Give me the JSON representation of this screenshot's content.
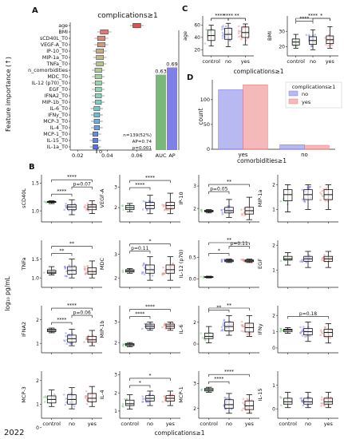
{
  "colors": {
    "control": "#6fbf73",
    "no": "#7f7fe8",
    "yes": "#ef7f7f",
    "auc": "#7ab87a",
    "ap": "#7f7fe8",
    "age_box": "#e05050"
  },
  "footer": {
    "year": "2022"
  },
  "panel_labels": {
    "a": "A",
    "b": "B",
    "c": "C",
    "d": "D"
  },
  "shared": {
    "ylabel_b": "log₁₀ pg/mL",
    "xlabel_b": "complications≥1",
    "groups": [
      "control",
      "no",
      "yes"
    ]
  },
  "chart_data": [
    {
      "id": "A",
      "type": "bar",
      "title": "complications≥1",
      "ylabel": "Feature importance (↑)",
      "features": [
        "age",
        "BMI",
        "sCD40L_T0",
        "VEGF-A_T0",
        "IP-10_T0",
        "MIP-1a_T0",
        "TNFa_T0",
        "n_comorbidities",
        "MDC_T0",
        "IL-12 (p70)_T0",
        "EGF_T0",
        "IFNA2_T0",
        "MIP-1b_T0",
        "IL-6_T0",
        "IFNy_T0",
        "MCP-3_T0",
        "IL-4_T0",
        "MCP-1_T0",
        "IL-15_T0",
        "IL-1a_T0"
      ],
      "importance": [
        0.06,
        0.038,
        0.036,
        0.036,
        0.035,
        0.035,
        0.035,
        0.034,
        0.034,
        0.034,
        0.034,
        0.034,
        0.034,
        0.033,
        0.033,
        0.033,
        0.033,
        0.032,
        0.032,
        0.032
      ],
      "xticks": [
        "0.02",
        "0.04",
        "0.06"
      ],
      "xlim": [
        0.015,
        0.07
      ],
      "t0_label": "T₀",
      "inset": {
        "categories": [
          "AUC",
          "AP"
        ],
        "values": [
          0.63,
          0.69
        ],
        "value_labels": [
          "0.63",
          "0.69"
        ],
        "ylim": [
          0,
          1
        ],
        "stats": [
          "n=139(52%)",
          "AP=0.74",
          "p=0.001"
        ]
      }
    },
    {
      "id": "C",
      "type": "box",
      "xlabel": "complications≥1",
      "panels": [
        {
          "ylabel": "age",
          "yticks": [
            "20",
            "40",
            "60"
          ],
          "ylim": [
            10,
            75
          ],
          "stats": [
            [
              26,
              35,
              43,
              52,
              60
            ],
            [
              25,
              37,
              45,
              55,
              63
            ],
            [
              28,
              40,
              48,
              57,
              62
            ]
          ],
          "sig": [
            {
              "a": 0,
              "b": 2,
              "label": "****"
            },
            {
              "a": 0,
              "b": 1,
              "label": "****"
            },
            {
              "a": 1,
              "b": 2,
              "label": "**"
            }
          ]
        },
        {
          "ylabel": "BMI",
          "yticks": [
            "20",
            "30"
          ],
          "ylim": [
            14,
            40
          ],
          "stats": [
            [
              19,
              21,
              23,
              25,
              28
            ],
            [
              18,
              21.5,
              24,
              26.5,
              31
            ],
            [
              19,
              22,
              24.5,
              27,
              33
            ]
          ],
          "sig": [
            {
              "a": 0,
              "b": 2,
              "label": "****"
            },
            {
              "a": 0,
              "b": 1,
              "label": "****"
            },
            {
              "a": 1,
              "b": 2,
              "label": "*"
            }
          ]
        }
      ]
    },
    {
      "id": "D",
      "type": "bar",
      "xlabel": "comorbidities≥1",
      "ylabel": "count",
      "categories": [
        "yes",
        "no"
      ],
      "series": [
        {
          "name": "no",
          "values": [
            120,
            9
          ]
        },
        {
          "name": "yes",
          "values": [
            130,
            8
          ]
        }
      ],
      "yticks": [
        "0",
        "50",
        "100"
      ],
      "ylim": [
        0,
        140
      ],
      "legend_title": "complications≥1",
      "legend": [
        "no",
        "yes"
      ]
    },
    {
      "id": "B",
      "type": "box",
      "panels": [
        {
          "ylabel": "sCD40L",
          "yticks": [
            "1.0",
            "1.5"
          ],
          "ylim": [
            0.8,
            1.65
          ],
          "stats": [
            [
              1.13,
              1.15,
              1.16,
              1.17,
              1.18
            ],
            [
              0.93,
              1.02,
              1.07,
              1.11,
              1.2
            ],
            [
              0.95,
              1.02,
              1.07,
              1.11,
              1.18
            ]
          ],
          "sig": [
            {
              "a": 0,
              "b": 2,
              "label": "****"
            },
            {
              "a": 0,
              "b": 1,
              "label": "****"
            },
            {
              "a": 1,
              "b": 2,
              "label": "p=0.07"
            }
          ]
        },
        {
          "ylabel": "VEGF-A",
          "yticks": [
            "2",
            "3"
          ],
          "ylim": [
            1.3,
            3.6
          ],
          "stats": [
            [
              1.8,
              1.9,
              2.0,
              2.1,
              2.2
            ],
            [
              1.7,
              1.95,
              2.1,
              2.25,
              2.6
            ],
            [
              1.7,
              1.95,
              2.1,
              2.25,
              2.7
            ]
          ],
          "sig": [
            {
              "a": 0,
              "b": 2,
              "label": "****"
            },
            {
              "a": 0,
              "b": 1,
              "label": "****"
            }
          ]
        },
        {
          "ylabel": "IP-10",
          "yticks": [
            "2",
            "3"
          ],
          "ylim": [
            1.4,
            3.5
          ],
          "stats": [
            [
              1.8,
              1.85,
              1.88,
              1.92,
              1.95
            ],
            [
              1.6,
              1.8,
              1.9,
              2.05,
              2.4
            ],
            [
              1.5,
              1.75,
              1.9,
              2.05,
              2.5
            ]
          ],
          "sig": [
            {
              "a": 0,
              "b": 2,
              "label": "**"
            },
            {
              "a": 0,
              "b": 1,
              "label": "p=0.05"
            }
          ]
        },
        {
          "ylabel": "MIP-1a",
          "yticks": [
            "1",
            "2"
          ],
          "ylim": [
            0.5,
            2.4
          ],
          "stats": [
            [
              0.9,
              1.35,
              1.6,
              1.8,
              2.0
            ],
            [
              1.0,
              1.4,
              1.6,
              1.8,
              2.0
            ],
            [
              1.0,
              1.4,
              1.6,
              1.8,
              2.0
            ]
          ],
          "sig": []
        },
        {
          "ylabel": "TNFa",
          "yticks": [
            "1.0",
            "1.5"
          ],
          "ylim": [
            0.75,
            2.0
          ],
          "stats": [
            [
              1.08,
              1.12,
              1.15,
              1.2,
              1.3
            ],
            [
              1.0,
              1.1,
              1.2,
              1.3,
              1.5
            ],
            [
              1.0,
              1.1,
              1.17,
              1.27,
              1.45
            ]
          ],
          "sig": [
            {
              "a": 0,
              "b": 2,
              "label": "**"
            },
            {
              "a": 0,
              "b": 1,
              "label": "**"
            }
          ]
        },
        {
          "ylabel": "MDC",
          "yticks": [
            "2",
            "3"
          ],
          "ylim": [
            1.6,
            3.6
          ],
          "stats": [
            [
              2.2,
              2.25,
              2.3,
              2.35,
              2.4
            ],
            [
              1.9,
              2.2,
              2.35,
              2.55,
              2.9
            ],
            [
              1.9,
              2.2,
              2.35,
              2.55,
              2.9
            ]
          ],
          "sig": [
            {
              "a": 0,
              "b": 2,
              "label": "*"
            },
            {
              "a": 0,
              "b": 1,
              "label": "p=0.11"
            }
          ]
        },
        {
          "ylabel": "IL-12 (p70)",
          "yticks": [
            "0.0",
            "0.5"
          ],
          "ylim": [
            -0.2,
            0.9
          ],
          "stats": [
            [
              0.02,
              0.03,
              0.04,
              0.05,
              0.06
            ],
            [
              0.38,
              0.4,
              0.42,
              0.44,
              0.46
            ],
            [
              0.38,
              0.4,
              0.42,
              0.44,
              0.46
            ]
          ],
          "sig": [
            {
              "a": 0,
              "b": 2,
              "label": "**"
            },
            {
              "a": 0,
              "b": 1,
              "label": "*"
            },
            {
              "a": 1,
              "b": 2,
              "label": "p=0.11"
            }
          ]
        },
        {
          "ylabel": "EGF",
          "yticks": [
            "1",
            "2"
          ],
          "ylim": [
            0.3,
            2.2
          ],
          "stats": [
            [
              1.2,
              1.4,
              1.45,
              1.55,
              1.7
            ],
            [
              1.1,
              1.35,
              1.45,
              1.55,
              1.75
            ],
            [
              1.1,
              1.35,
              1.45,
              1.55,
              1.75
            ]
          ],
          "sig": []
        },
        {
          "ylabel": "IFNA2",
          "yticks": [
            "1",
            "2"
          ],
          "ylim": [
            0.6,
            2.6
          ],
          "stats": [
            [
              1.45,
              1.5,
              1.55,
              1.6,
              1.65
            ],
            [
              0.9,
              1.05,
              1.2,
              1.35,
              1.6
            ],
            [
              0.9,
              1.05,
              1.15,
              1.3,
              1.55
            ]
          ],
          "sig": [
            {
              "a": 0,
              "b": 2,
              "label": "****"
            },
            {
              "a": 0,
              "b": 1,
              "label": "****"
            },
            {
              "a": 1,
              "b": 2,
              "label": "p=0.06"
            }
          ]
        },
        {
          "ylabel": "MIP-1b",
          "yticks": [
            "2",
            "3"
          ],
          "ylim": [
            1.5,
            3.8
          ],
          "stats": [
            [
              1.8,
              1.85,
              1.9,
              1.95,
              2.0
            ],
            [
              2.6,
              2.7,
              2.8,
              2.9,
              3.0
            ],
            [
              2.6,
              2.7,
              2.8,
              2.9,
              3.0
            ]
          ],
          "sig": [
            {
              "a": 0,
              "b": 2,
              "label": "****"
            },
            {
              "a": 0,
              "b": 1,
              "label": "****"
            }
          ]
        },
        {
          "ylabel": "IL-6",
          "yticks": [
            "0",
            "2"
          ],
          "ylim": [
            -0.8,
            3.5
          ],
          "stats": [
            [
              0.1,
              0.5,
              0.7,
              1.0,
              1.6
            ],
            [
              0.8,
              1.2,
              1.6,
              2.0,
              2.6
            ],
            [
              0.7,
              1.1,
              1.5,
              1.9,
              2.6
            ]
          ],
          "sig": [
            {
              "a": 0,
              "b": 2,
              "label": "**"
            },
            {
              "a": 0,
              "b": 1,
              "label": "**"
            }
          ]
        },
        {
          "ylabel": "IFNy",
          "yticks": [
            "0",
            "1",
            "2"
          ],
          "ylim": [
            -0.3,
            2.6
          ],
          "stats": [
            [
              0.9,
              1.0,
              1.1,
              1.15,
              1.25
            ],
            [
              0.4,
              0.8,
              1.0,
              1.2,
              1.6
            ],
            [
              0.3,
              0.7,
              0.95,
              1.15,
              1.5
            ]
          ],
          "sig": [
            {
              "a": 0,
              "b": 2,
              "label": "p=0.18"
            }
          ]
        },
        {
          "ylabel": "MCP-3",
          "yticks": [
            "0",
            "1",
            "2"
          ],
          "ylim": [
            0.4,
            2.4
          ],
          "stats": [
            [
              0.9,
              1.05,
              1.2,
              1.35,
              1.6
            ],
            [
              0.8,
              1.0,
              1.2,
              1.4,
              1.7
            ],
            [
              0.9,
              1.1,
              1.25,
              1.45,
              1.75
            ]
          ],
          "sig": []
        },
        {
          "ylabel": "IL-4",
          "yticks": [
            "1",
            "2",
            "3"
          ],
          "ylim": [
            0.6,
            3.2
          ],
          "stats": [
            [
              1.1,
              1.3,
              1.4,
              1.6,
              1.9
            ],
            [
              1.3,
              1.55,
              1.7,
              1.85,
              2.1
            ],
            [
              1.3,
              1.55,
              1.7,
              1.85,
              2.1
            ]
          ],
          "sig": [
            {
              "a": 0,
              "b": 2,
              "label": "*"
            },
            {
              "a": 0,
              "b": 1,
              "label": "*"
            }
          ]
        },
        {
          "ylabel": "MCP-1",
          "yticks": [
            "2",
            "3"
          ],
          "ylim": [
            1.6,
            3.5
          ],
          "stats": [
            [
              2.65,
              2.7,
              2.75,
              2.8,
              2.85
            ],
            [
              1.8,
              2.0,
              2.15,
              2.35,
              2.6
            ],
            [
              1.8,
              1.95,
              2.1,
              2.3,
              2.55
            ]
          ],
          "sig": [
            {
              "a": 0,
              "b": 2,
              "label": "****"
            },
            {
              "a": 0,
              "b": 1,
              "label": "****"
            }
          ]
        },
        {
          "ylabel": "IL-15",
          "yticks": [
            "0",
            "1"
          ],
          "ylim": [
            -0.4,
            1.6
          ],
          "stats": [
            [
              0.05,
              0.2,
              0.3,
              0.45,
              0.7
            ],
            [
              0.05,
              0.2,
              0.3,
              0.45,
              0.7
            ],
            [
              0.05,
              0.2,
              0.3,
              0.45,
              0.7
            ]
          ],
          "sig": []
        }
      ]
    }
  ]
}
